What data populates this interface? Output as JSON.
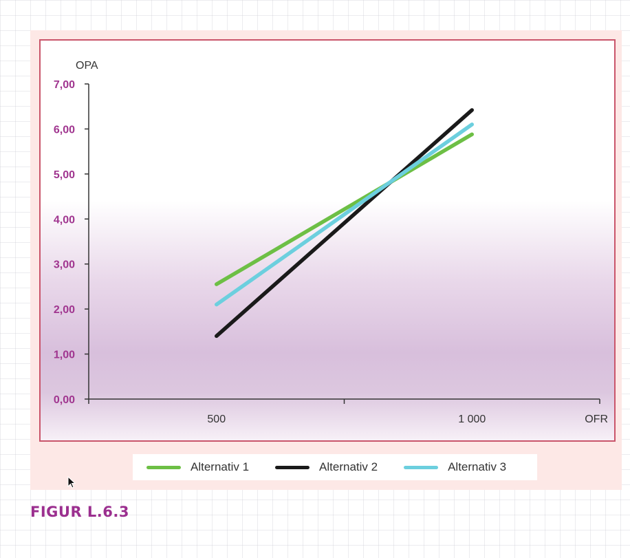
{
  "figure": {
    "caption": "FIGUR L.6.3"
  },
  "chart_data": {
    "type": "line",
    "ylabel": "OPA",
    "xlabel": "OFR",
    "ylim": [
      0,
      7
    ],
    "yticks": [
      "0,00",
      "1,00",
      "2,00",
      "3,00",
      "4,00",
      "5,00",
      "6,00",
      "7,00"
    ],
    "xlim": [
      250,
      1250
    ],
    "xticks": [
      {
        "value": 500,
        "label": "500"
      },
      {
        "value": 1000,
        "label": "1 000"
      }
    ],
    "grid": false,
    "legend_position": "bottom",
    "series": [
      {
        "name": "Alternativ 1",
        "color": "#6dbf45",
        "points": [
          [
            500,
            2.55
          ],
          [
            1000,
            5.88
          ]
        ]
      },
      {
        "name": "Alternativ 2",
        "color": "#1a1a1a",
        "points": [
          [
            500,
            1.4
          ],
          [
            1000,
            6.42
          ]
        ]
      },
      {
        "name": "Alternativ 3",
        "color": "#6ccfde",
        "points": [
          [
            500,
            2.1
          ],
          [
            1000,
            6.1
          ]
        ]
      }
    ],
    "axis_color": "#333333",
    "ytick_color": "#a0358f"
  }
}
